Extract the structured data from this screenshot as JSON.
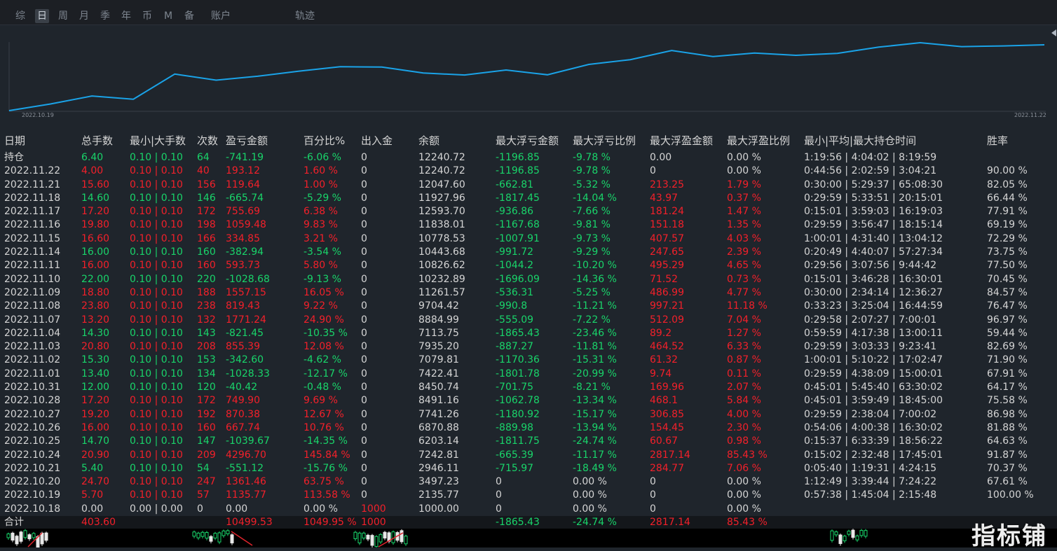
{
  "tabs": [
    {
      "label": "综",
      "active": false
    },
    {
      "label": "日",
      "active": true
    },
    {
      "label": "周",
      "active": false
    },
    {
      "label": "月",
      "active": false
    },
    {
      "label": "季",
      "active": false
    },
    {
      "label": "年",
      "active": false
    },
    {
      "label": "币",
      "active": false
    },
    {
      "label": "M",
      "active": false
    },
    {
      "label": "备",
      "active": false
    },
    {
      "label": "账户",
      "active": false
    },
    {
      "label": "轨迹",
      "active": false
    }
  ],
  "chart": {
    "start_label": "2022.10.19",
    "end_label": "2022.11.22",
    "line_color": "#1aa3e8"
  },
  "colors": {
    "positive": "#f3202a",
    "negative": "#19d46a",
    "neutral": "#d5d5d5"
  },
  "table": {
    "headers": [
      "日期",
      "总手数",
      "最小|大手数",
      "次数",
      "盈亏金额",
      "百分比%",
      "出入金",
      "余额",
      "最大浮亏金额",
      "最大浮亏比例",
      "最大浮盈金额",
      "最大浮盈比例",
      "最小|平均|最大持仓时间",
      "胜率"
    ],
    "rows": [
      [
        "持仓",
        "6.40",
        "0.10 | 0.10",
        "64",
        "-741.19",
        "-6.06 %",
        "0",
        "12240.72",
        "-1196.85",
        "-9.78 %",
        "0.00",
        "0.00 %",
        "1:19:56 | 4:04:02 | 8:19:59",
        ""
      ],
      [
        "2022.11.22",
        "4.00",
        "0.10 | 0.10",
        "40",
        "193.12",
        "1.60 %",
        "0",
        "12240.72",
        "-1196.85",
        "-9.78 %",
        "0",
        "0.00 %",
        "0:44:56 | 2:02:59 | 3:04:21",
        "90.00 %"
      ],
      [
        "2022.11.21",
        "15.60",
        "0.10 | 0.10",
        "156",
        "119.64",
        "1.00 %",
        "0",
        "12047.60",
        "-662.81",
        "-5.32 %",
        "213.25",
        "1.79 %",
        "0:30:00 | 5:29:37 | 65:08:30",
        "82.05 %"
      ],
      [
        "2022.11.18",
        "14.60",
        "0.10 | 0.10",
        "146",
        "-665.74",
        "-5.29 %",
        "0",
        "11927.96",
        "-1817.45",
        "-14.04 %",
        "43.97",
        "0.37 %",
        "0:29:59 | 5:33:51 | 20:15:01",
        "66.44 %"
      ],
      [
        "2022.11.17",
        "17.20",
        "0.10 | 0.10",
        "172",
        "755.69",
        "6.38 %",
        "0",
        "12593.70",
        "-936.86",
        "-7.66 %",
        "181.24",
        "1.47 %",
        "0:15:01 | 3:59:03 | 16:19:03",
        "77.91 %"
      ],
      [
        "2022.11.16",
        "19.80",
        "0.10 | 0.10",
        "198",
        "1059.48",
        "9.83 %",
        "0",
        "11838.01",
        "-1167.68",
        "-9.81 %",
        "151.18",
        "1.35 %",
        "0:29:59 | 3:56:47 | 18:15:14",
        "69.19 %"
      ],
      [
        "2022.11.15",
        "16.60",
        "0.10 | 0.10",
        "166",
        "334.85",
        "3.21 %",
        "0",
        "10778.53",
        "-1007.91",
        "-9.73 %",
        "407.57",
        "4.03 %",
        "1:00:01 | 4:31:40 | 13:04:12",
        "72.29 %"
      ],
      [
        "2022.11.14",
        "16.00",
        "0.10 | 0.10",
        "160",
        "-382.94",
        "-3.54 %",
        "0",
        "10443.68",
        "-991.72",
        "-9.29 %",
        "247.65",
        "2.39 %",
        "0:20:49 | 4:40:07 | 57:27:34",
        "73.75 %"
      ],
      [
        "2022.11.11",
        "16.00",
        "0.10 | 0.10",
        "160",
        "593.73",
        "5.80 %",
        "0",
        "10826.62",
        "-1044.2",
        "-10.20 %",
        "495.29",
        "4.65 %",
        "0:29:56 | 3:07:56 | 9:44:42",
        "77.50 %"
      ],
      [
        "2022.11.10",
        "22.00",
        "0.10 | 0.10",
        "220",
        "-1028.68",
        "-9.13 %",
        "0",
        "10232.89",
        "-1696.09",
        "-14.36 %",
        "71.52",
        "0.73 %",
        "0:15:01 | 3:46:28 | 16:30:01",
        "70.45 %"
      ],
      [
        "2022.11.09",
        "18.80",
        "0.10 | 0.10",
        "188",
        "1557.15",
        "16.05 %",
        "0",
        "11261.57",
        "-536.31",
        "-5.25 %",
        "486.99",
        "4.77 %",
        "0:30:00 | 2:34:14 | 12:36:27",
        "84.57 %"
      ],
      [
        "2022.11.08",
        "23.80",
        "0.10 | 0.10",
        "238",
        "819.43",
        "9.22 %",
        "0",
        "9704.42",
        "-990.8",
        "-11.21 %",
        "997.21",
        "11.18 %",
        "0:33:23 | 3:25:04 | 16:44:59",
        "76.47 %"
      ],
      [
        "2022.11.07",
        "13.20",
        "0.10 | 0.10",
        "132",
        "1771.24",
        "24.90 %",
        "0",
        "8884.99",
        "-555.09",
        "-7.22 %",
        "512.09",
        "7.04 %",
        "0:29:58 | 2:07:27 | 7:00:01",
        "96.97 %"
      ],
      [
        "2022.11.04",
        "14.30",
        "0.10 | 0.10",
        "143",
        "-821.45",
        "-10.35 %",
        "0",
        "7113.75",
        "-1865.43",
        "-23.46 %",
        "89.2",
        "1.27 %",
        "0:59:59 | 4:17:38 | 13:00:11",
        "59.44 %"
      ],
      [
        "2022.11.03",
        "20.80",
        "0.10 | 0.10",
        "208",
        "855.39",
        "12.08 %",
        "0",
        "7935.20",
        "-887.27",
        "-11.81 %",
        "464.52",
        "6.33 %",
        "0:29:59 | 3:03:33 | 9:23:41",
        "82.69 %"
      ],
      [
        "2022.11.02",
        "15.30",
        "0.10 | 0.10",
        "153",
        "-342.60",
        "-4.62 %",
        "0",
        "7079.81",
        "-1170.36",
        "-15.31 %",
        "61.32",
        "0.87 %",
        "1:00:01 | 5:10:22 | 17:02:47",
        "71.90 %"
      ],
      [
        "2022.11.01",
        "13.40",
        "0.10 | 0.10",
        "134",
        "-1028.33",
        "-12.17 %",
        "0",
        "7422.41",
        "-1801.78",
        "-20.99 %",
        "9.74",
        "0.11 %",
        "0:29:59 | 4:38:09 | 15:00:01",
        "67.91 %"
      ],
      [
        "2022.10.31",
        "12.00",
        "0.10 | 0.10",
        "120",
        "-40.42",
        "-0.48 %",
        "0",
        "8450.74",
        "-701.75",
        "-8.21 %",
        "169.96",
        "2.07 %",
        "0:45:01 | 5:45:40 | 63:30:02",
        "64.17 %"
      ],
      [
        "2022.10.28",
        "17.20",
        "0.10 | 0.10",
        "172",
        "749.90",
        "9.69 %",
        "0",
        "8491.16",
        "-1062.78",
        "-13.34 %",
        "468.1",
        "5.84 %",
        "0:45:01 | 3:59:49 | 18:45:00",
        "75.58 %"
      ],
      [
        "2022.10.27",
        "19.20",
        "0.10 | 0.10",
        "192",
        "870.38",
        "12.67 %",
        "0",
        "7741.26",
        "-1180.92",
        "-15.17 %",
        "306.85",
        "4.00 %",
        "0:29:59 | 2:38:04 | 7:00:02",
        "86.98 %"
      ],
      [
        "2022.10.26",
        "16.00",
        "0.10 | 0.10",
        "160",
        "667.74",
        "10.76 %",
        "0",
        "6870.88",
        "-889.98",
        "-13.94 %",
        "154.45",
        "2.30 %",
        "0:54:06 | 4:00:38 | 16:30:02",
        "81.88 %"
      ],
      [
        "2022.10.25",
        "14.70",
        "0.10 | 0.10",
        "147",
        "-1039.67",
        "-14.35 %",
        "0",
        "6203.14",
        "-1811.75",
        "-24.74 %",
        "60.67",
        "0.98 %",
        "0:15:37 | 6:33:39 | 18:56:22",
        "64.63 %"
      ],
      [
        "2022.10.24",
        "20.90",
        "0.10 | 0.10",
        "209",
        "4296.70",
        "145.84 %",
        "0",
        "7242.81",
        "-665.39",
        "-11.17 %",
        "2817.14",
        "85.43 %",
        "0:15:02 | 2:32:48 | 17:45:01",
        "91.87 %"
      ],
      [
        "2022.10.21",
        "5.40",
        "0.10 | 0.10",
        "54",
        "-551.12",
        "-15.76 %",
        "0",
        "2946.11",
        "-715.97",
        "-18.49 %",
        "284.77",
        "7.06 %",
        "0:05:40 | 1:19:31 | 4:24:15",
        "70.37 %"
      ],
      [
        "2022.10.20",
        "24.70",
        "0.10 | 0.10",
        "247",
        "1361.46",
        "63.75 %",
        "0",
        "3497.23",
        "0",
        "0.00 %",
        "0",
        "0.00 %",
        "1:12:49 | 3:39:44 | 7:24:22",
        "67.61 %"
      ],
      [
        "2022.10.19",
        "5.70",
        "0.10 | 0.10",
        "57",
        "1135.77",
        "113.58 %",
        "0",
        "2135.77",
        "0",
        "0.00 %",
        "0",
        "0.00 %",
        "0:57:38 | 1:45:04 | 2:15:48",
        "100.00 %"
      ],
      [
        "2022.10.18",
        "0.00",
        "0.00 | 0.00",
        "0",
        "0.00",
        "0.00 %",
        "1000",
        "1000.00",
        "0",
        "0.00 %",
        "0",
        "0.00 %",
        "",
        ""
      ]
    ],
    "total": [
      "合计",
      "403.60",
      "",
      "",
      "10499.53",
      "1049.95 %",
      "1000",
      "",
      "-1865.43",
      "-24.74 %",
      "2817.14",
      "85.43 %",
      "",
      ""
    ]
  },
  "watermark": "指标铺"
}
